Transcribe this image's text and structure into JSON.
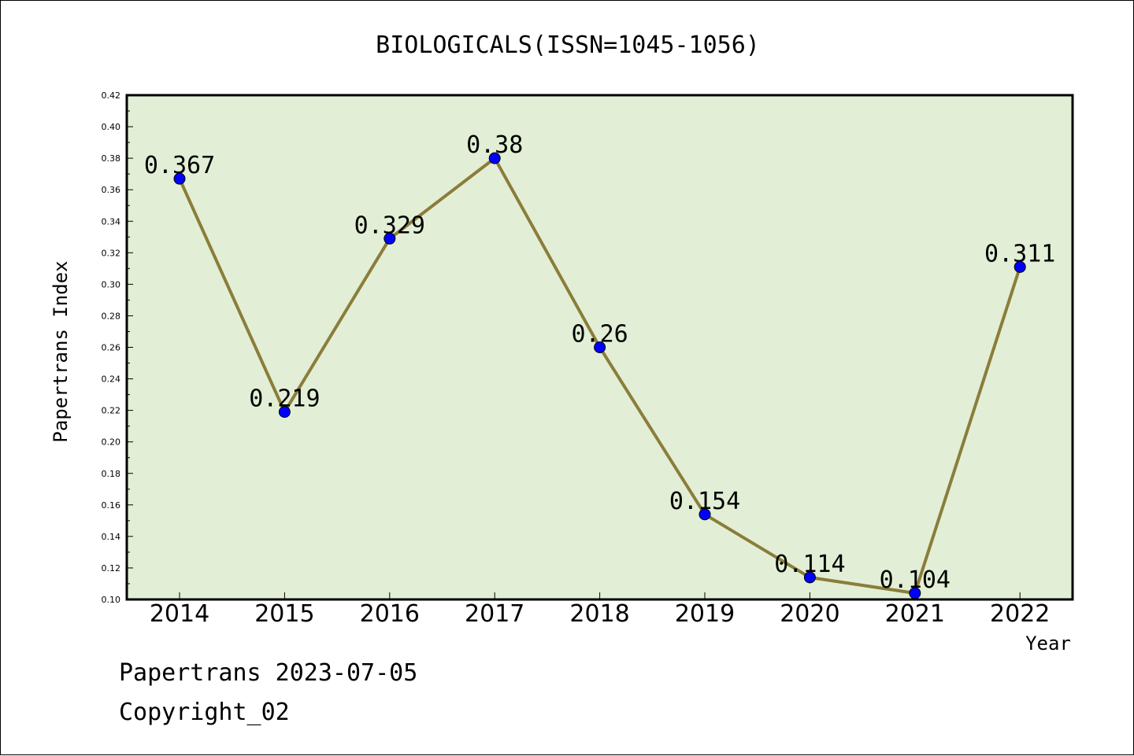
{
  "chart_data": {
    "type": "line",
    "title": "BIOLOGICALS(ISSN=1045-1056)",
    "xlabel": "Year",
    "ylabel": "Papertrans Index",
    "categories": [
      "2014",
      "2015",
      "2016",
      "2017",
      "2018",
      "2019",
      "2020",
      "2021",
      "2022"
    ],
    "values": [
      0.367,
      0.219,
      0.329,
      0.38,
      0.26,
      0.154,
      0.114,
      0.104,
      0.311
    ],
    "data_labels": [
      "0.367",
      "0.219",
      "0.329",
      "0.38",
      "0.26",
      "0.154",
      "0.114",
      "0.104",
      "0.311"
    ],
    "ylim": [
      0.1,
      0.42
    ],
    "yticks": [
      "0.10",
      "0.12",
      "0.14",
      "0.16",
      "0.18",
      "0.20",
      "0.22",
      "0.24",
      "0.26",
      "0.28",
      "0.30",
      "0.32",
      "0.34",
      "0.36",
      "0.38",
      "0.40",
      "0.42"
    ],
    "grid": false,
    "colors": {
      "plot_background": "#e2efd6",
      "line": "#8b7d3a",
      "marker": "#0000ff"
    }
  },
  "footer": {
    "line1": "Papertrans 2023-07-05",
    "line2": "Copyright_02"
  }
}
